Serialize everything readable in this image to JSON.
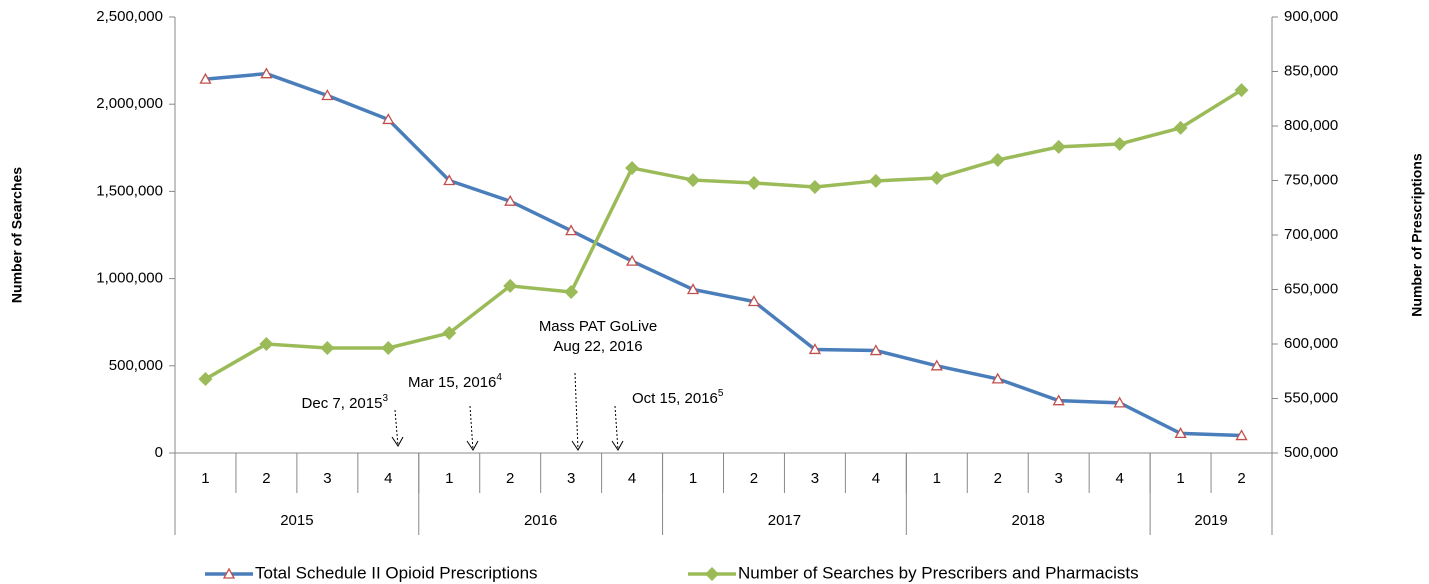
{
  "chart_data": {
    "type": "line",
    "categories": [
      "1",
      "2",
      "3",
      "4",
      "1",
      "2",
      "3",
      "4",
      "1",
      "2",
      "3",
      "4",
      "1",
      "2",
      "3",
      "4",
      "1",
      "2"
    ],
    "groups": [
      {
        "label": "2015",
        "span": 4
      },
      {
        "label": "2016",
        "span": 4
      },
      {
        "label": "2017",
        "span": 4
      },
      {
        "label": "2018",
        "span": 4
      },
      {
        "label": "2019",
        "span": 2
      }
    ],
    "ylabel": "Number of Searches",
    "y2label": "Number of Prescriptions",
    "ylim": [
      0,
      2500000
    ],
    "yticks": [
      0,
      {
        "value": 500000,
        "label": "500,000"
      },
      {
        "value": 1000000,
        "label": "1,000,000"
      },
      {
        "value": 1500000,
        "label": "1,500,000"
      },
      {
        "value": 2000000,
        "label": "2,000,000"
      },
      {
        "value": 2500000,
        "label": "2,500,000"
      }
    ],
    "y2lim": [
      500000,
      900000
    ],
    "y2ticks": [
      {
        "value": 500000,
        "label": "500,000"
      },
      {
        "value": 550000,
        "label": "550,000"
      },
      {
        "value": 600000,
        "label": "600,000"
      },
      {
        "value": 650000,
        "label": "650,000"
      },
      {
        "value": 700000,
        "label": "700,000"
      },
      {
        "value": 750000,
        "label": "750,000"
      },
      {
        "value": 800000,
        "label": "800,000"
      },
      {
        "value": 850000,
        "label": "850,000"
      },
      {
        "value": 900000,
        "label": "900,000"
      }
    ],
    "series": [
      {
        "name": "Total Schedule II Opioid Prescriptions",
        "color": "#4a7ebb",
        "marker": "triangle",
        "marker_color": "#c0504d",
        "axis": "y2",
        "values": [
          843000,
          848000,
          828000,
          806000,
          750000,
          731000,
          704000,
          676000,
          650000,
          639000,
          595000,
          594000,
          580000,
          568000,
          548000,
          546000,
          518000,
          516000
        ]
      },
      {
        "name": "Number of Searches by Prescribers and Pharmacists",
        "color": "#9bbb59",
        "marker": "diamond",
        "marker_color": "#9bbb59",
        "values": [
          424000,
          625000,
          602000,
          602000,
          688000,
          958000,
          923000,
          1634000,
          1565000,
          1548000,
          1525000,
          1560000,
          1577000,
          1680000,
          1755000,
          1772000,
          1864000,
          2081000
        ]
      }
    ],
    "annotations": [
      {
        "text": [
          "Dec  7, 2015"
        ],
        "sup": "3"
      },
      {
        "text": [
          "Mar 15, 2016"
        ],
        "sup": "4"
      },
      {
        "text": [
          "Mass PAT GoLive",
          "Aug 22, 2016"
        ]
      },
      {
        "text": [
          "Oct 15, 2016"
        ],
        "sup": "5"
      }
    ]
  }
}
